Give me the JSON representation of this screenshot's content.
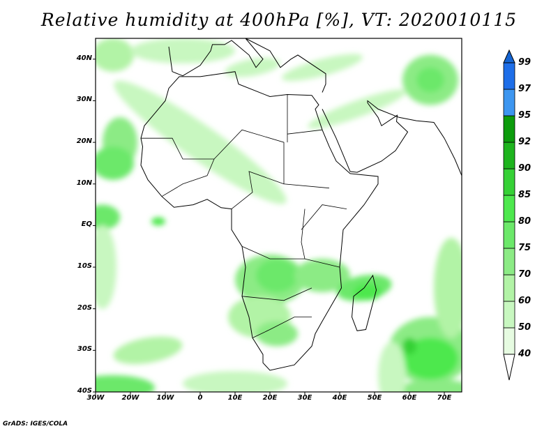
{
  "title": "Relative humidity at 400hPa [%], VT: 2020010115",
  "credit": "GrADS: IGES/COLA",
  "map": {
    "lon_range": [
      -30,
      75
    ],
    "lat_range": [
      -40,
      45
    ],
    "lon_ticks": [
      {
        "v": -30,
        "label": "30W"
      },
      {
        "v": -20,
        "label": "20W"
      },
      {
        "v": -10,
        "label": "10W"
      },
      {
        "v": 0,
        "label": "0"
      },
      {
        "v": 10,
        "label": "10E"
      },
      {
        "v": 20,
        "label": "20E"
      },
      {
        "v": 30,
        "label": "30E"
      },
      {
        "v": 40,
        "label": "40E"
      },
      {
        "v": 50,
        "label": "50E"
      },
      {
        "v": 60,
        "label": "60E"
      },
      {
        "v": 70,
        "label": "70E"
      }
    ],
    "lat_ticks": [
      {
        "v": 40,
        "label": "40N"
      },
      {
        "v": 30,
        "label": "30N"
      },
      {
        "v": 20,
        "label": "20N"
      },
      {
        "v": 10,
        "label": "10N"
      },
      {
        "v": 0,
        "label": "EQ"
      },
      {
        "v": -10,
        "label": "10S"
      },
      {
        "v": -20,
        "label": "20S"
      },
      {
        "v": -30,
        "label": "30S"
      },
      {
        "v": -40,
        "label": "40S"
      }
    ]
  },
  "colorbar": {
    "levels": [
      "40",
      "50",
      "60",
      "70",
      "75",
      "80",
      "85",
      "90",
      "92",
      "95",
      "97",
      "99"
    ],
    "colors": [
      "#e6fbe1",
      "#c8f7c0",
      "#b2f3a6",
      "#8ceb85",
      "#6ce86a",
      "#4ee84e",
      "#36d136",
      "#1eb41e",
      "#0c9c0c",
      "#3d96f0",
      "#1e6ee8",
      "#1464d2"
    ]
  }
}
